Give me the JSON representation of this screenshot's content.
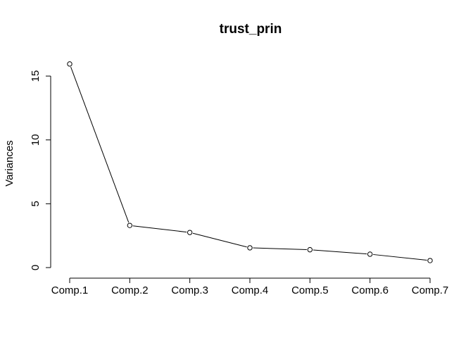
{
  "chart_data": {
    "type": "line",
    "title": "trust_prin",
    "xlabel": "",
    "ylabel": "Variances",
    "categories": [
      "Comp.1",
      "Comp.2",
      "Comp.3",
      "Comp.4",
      "Comp.5",
      "Comp.6",
      "Comp.7"
    ],
    "values": [
      15.95,
      3.3,
      2.75,
      1.55,
      1.4,
      1.05,
      0.55
    ],
    "ylim": [
      0,
      16
    ],
    "yticks": [
      0,
      5,
      10,
      15
    ],
    "markers": "open-circle",
    "grid": false,
    "line_color": "#000000"
  }
}
